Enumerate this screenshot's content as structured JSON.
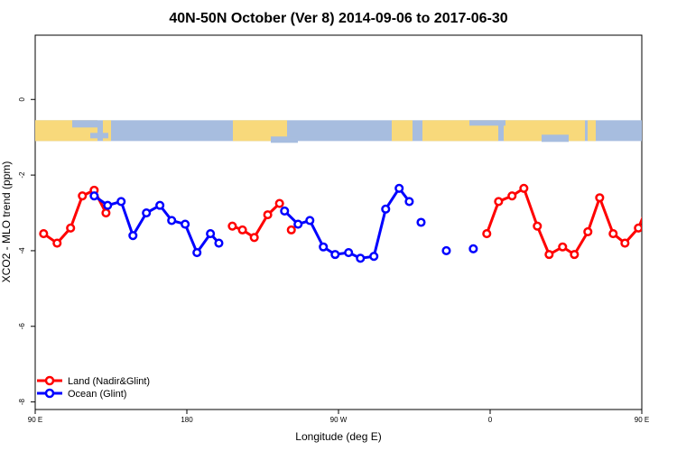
{
  "chart_data": {
    "type": "line",
    "title": "40N-50N October (Ver 8)   2014-09-06 to 2017-06-30",
    "xlabel": "Longitude (deg E)",
    "ylabel": "XCO2 - MLO trend (ppm)",
    "xlim": [
      90,
      450
    ],
    "ylim": [
      -8.2,
      1.7
    ],
    "x_ticks": [
      {
        "value": 90,
        "label": "90 E"
      },
      {
        "value": 180,
        "label": "180"
      },
      {
        "value": 270,
        "label": "90 W"
      },
      {
        "value": 360,
        "label": "0"
      },
      {
        "value": 450,
        "label": "90 E"
      },
      {
        "value": 540,
        "label": "180"
      }
    ],
    "y_ticks": [
      {
        "value": 0,
        "label": "0"
      },
      {
        "value": -2,
        "label": "-2"
      },
      {
        "value": -4,
        "label": "-4"
      },
      {
        "value": -6,
        "label": "-6"
      },
      {
        "value": -8,
        "label": "-8"
      }
    ],
    "map_strip": {
      "y_top": -0.55,
      "y_bottom": -1.1,
      "ocean_color": "#a7bddf",
      "land_color": "#f8d97b"
    },
    "legend_position": "bottom-left",
    "series": [
      {
        "name": "Land (Nadir&Glint)",
        "color": "#ff0000",
        "segments": [
          [
            {
              "x": 95,
              "y": -3.55
            },
            {
              "x": 103,
              "y": -3.8
            },
            {
              "x": 111,
              "y": -3.4
            },
            {
              "x": 118,
              "y": -2.55
            },
            {
              "x": 125,
              "y": -2.4
            },
            {
              "x": 132,
              "y": -3.0
            }
          ],
          [
            {
              "x": 207,
              "y": -3.35
            },
            {
              "x": 213,
              "y": -3.45
            },
            {
              "x": 220,
              "y": -3.65
            },
            {
              "x": 228,
              "y": -3.05
            },
            {
              "x": 235,
              "y": -2.75
            }
          ],
          [
            {
              "x": 242,
              "y": -3.45
            }
          ],
          [
            {
              "x": 358,
              "y": -3.55
            },
            {
              "x": 365,
              "y": -2.7
            },
            {
              "x": 373,
              "y": -2.55
            },
            {
              "x": 380,
              "y": -2.35
            },
            {
              "x": 388,
              "y": -3.35
            },
            {
              "x": 395,
              "y": -4.1
            },
            {
              "x": 403,
              "y": -3.9
            },
            {
              "x": 410,
              "y": -4.1
            },
            {
              "x": 418,
              "y": -3.5
            },
            {
              "x": 425,
              "y": -2.6
            },
            {
              "x": 433,
              "y": -3.55
            },
            {
              "x": 440,
              "y": -3.8
            },
            {
              "x": 448,
              "y": -3.4
            },
            {
              "x": 456,
              "y": -2.55
            },
            {
              "x": 463,
              "y": -2.4
            },
            {
              "x": 470,
              "y": -3.0
            }
          ]
        ]
      },
      {
        "name": "Ocean (Glint)",
        "color": "#0000ff",
        "segments": [
          [
            {
              "x": 125,
              "y": -2.55
            },
            {
              "x": 133,
              "y": -2.8
            },
            {
              "x": 141,
              "y": -2.7
            },
            {
              "x": 148,
              "y": -3.6
            },
            {
              "x": 156,
              "y": -3.0
            },
            {
              "x": 164,
              "y": -2.8
            },
            {
              "x": 171,
              "y": -3.2
            },
            {
              "x": 179,
              "y": -3.3
            },
            {
              "x": 186,
              "y": -4.05
            },
            {
              "x": 194,
              "y": -3.55
            },
            {
              "x": 199,
              "y": -3.8
            }
          ],
          [
            {
              "x": 238,
              "y": -2.95
            },
            {
              "x": 246,
              "y": -3.3
            },
            {
              "x": 253,
              "y": -3.2
            },
            {
              "x": 261,
              "y": -3.9
            },
            {
              "x": 268,
              "y": -4.1
            },
            {
              "x": 276,
              "y": -4.05
            },
            {
              "x": 283,
              "y": -4.2
            },
            {
              "x": 291,
              "y": -4.15
            },
            {
              "x": 298,
              "y": -2.9
            },
            {
              "x": 306,
              "y": -2.35
            },
            {
              "x": 312,
              "y": -2.7
            }
          ],
          [
            {
              "x": 319,
              "y": -3.25
            }
          ],
          [
            {
              "x": 334,
              "y": -4.0
            }
          ],
          [
            {
              "x": 350,
              "y": -3.95
            }
          ],
          [
            {
              "x": 463,
              "y": -2.55
            },
            {
              "x": 471,
              "y": -2.8
            },
            {
              "x": 479,
              "y": -2.7
            },
            {
              "x": 486,
              "y": -3.6
            },
            {
              "x": 494,
              "y": -3.0
            }
          ]
        ]
      }
    ]
  }
}
